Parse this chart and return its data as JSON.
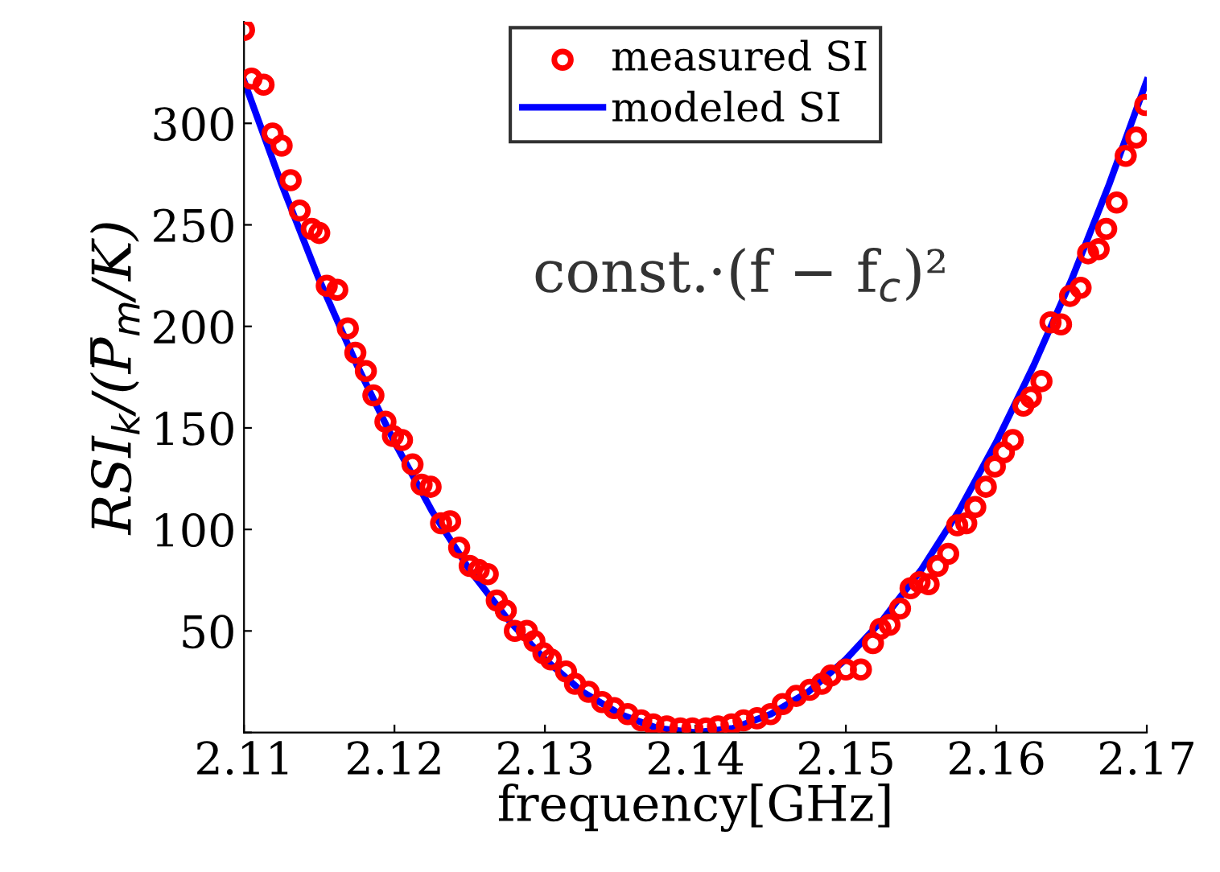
{
  "chart_data": {
    "type": "scatter",
    "xlabel": "frequency[GHz]",
    "ylabel": "RSI$_{k}$/(P̅$_{m}$/K)",
    "annotations": [
      "const.·(f − f$_{c}$)²"
    ],
    "xlim": [
      2.11,
      2.17
    ],
    "xticks": [
      2.11,
      2.12,
      2.13,
      2.14,
      2.15,
      2.16,
      2.17
    ],
    "ylim": [
      0,
      350
    ],
    "yticks": [
      {
        "value": 0,
        "label": null
      },
      50,
      100,
      150,
      200,
      250,
      300
    ],
    "grid": false,
    "legend": "top",
    "series": [
      {
        "name": "measured SI",
        "marker": "circle",
        "color": "#ff0000",
        "x": [
          2.11,
          2.1105,
          2.1113,
          2.1119,
          2.1125,
          2.1131,
          2.1137,
          2.1145,
          2.115,
          2.1155,
          2.1162,
          2.1169,
          2.1174,
          2.1181,
          2.1186,
          2.1194,
          2.1199,
          2.1205,
          2.1212,
          2.1218,
          2.1224,
          2.1231,
          2.1237,
          2.1243,
          2.125,
          2.1256,
          2.1262,
          2.1268,
          2.1274,
          2.128,
          2.1288,
          2.1293,
          2.1299,
          2.1304,
          2.1314,
          2.132,
          2.1329,
          2.1338,
          2.1346,
          2.1355,
          2.1364,
          2.1372,
          2.1381,
          2.139,
          2.1398,
          2.1407,
          2.1415,
          2.1424,
          2.1432,
          2.1441,
          2.145,
          2.1458,
          2.1467,
          2.1476,
          2.1484,
          2.149,
          2.15,
          2.151,
          2.1518,
          2.1523,
          2.1529,
          2.1536,
          2.1543,
          2.1549,
          2.1555,
          2.1561,
          2.1568,
          2.1574,
          2.158,
          2.1586,
          2.1593,
          2.1599,
          2.1605,
          2.1611,
          2.1618,
          2.1623,
          2.163,
          2.1636,
          2.1643,
          2.1649,
          2.1656,
          2.1661,
          2.1668,
          2.1673,
          2.168,
          2.1686,
          2.1693,
          2.1699
        ],
        "values": [
          346,
          322,
          319,
          295,
          289,
          272,
          257,
          248,
          246,
          220,
          218,
          199,
          187,
          178,
          166,
          153,
          146,
          144,
          132,
          122,
          121,
          103,
          104,
          91,
          82,
          80,
          78,
          65,
          60,
          50,
          50,
          45,
          39,
          36,
          30,
          24,
          20,
          15,
          12,
          9,
          6,
          4,
          3,
          2,
          2,
          2,
          3,
          4,
          6,
          7,
          9,
          14,
          18,
          21,
          24,
          28,
          31,
          31,
          44,
          51,
          53,
          61,
          71,
          74,
          73,
          82,
          88,
          102,
          103,
          111,
          121,
          131,
          138,
          144,
          161,
          165,
          173,
          202,
          201,
          215,
          219,
          236,
          238,
          248,
          261,
          284,
          293,
          309
        ]
      },
      {
        "name": "modeled SI",
        "type": "line",
        "line_style": "solid",
        "color": "#0000ff",
        "x": [
          2.11,
          2.1125,
          2.115,
          2.1175,
          2.12,
          2.1225,
          2.125,
          2.1275,
          2.13,
          2.1325,
          2.135,
          2.1375,
          2.14,
          2.1425,
          2.145,
          2.1475,
          2.15,
          2.1525,
          2.155,
          2.1575,
          2.16,
          2.1625,
          2.165,
          2.1675,
          2.17
        ],
        "values": [
          321,
          270,
          223,
          181,
          143,
          109,
          80,
          56,
          36,
          20,
          9,
          2,
          0,
          2,
          9,
          20,
          36,
          56,
          80,
          109,
          143,
          181,
          223,
          270,
          321
        ]
      }
    ]
  }
}
